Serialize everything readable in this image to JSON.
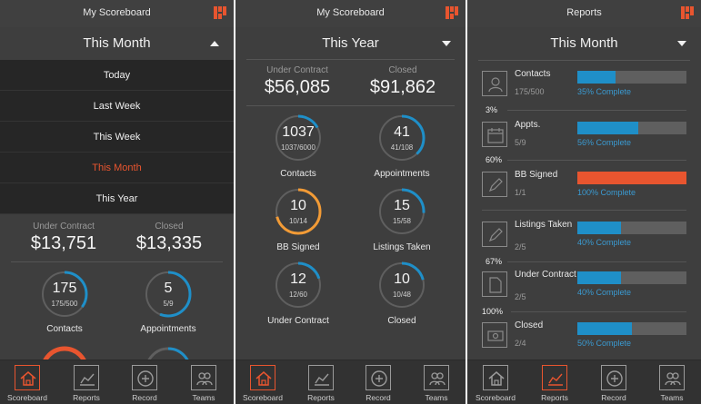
{
  "colors": {
    "accent": "#e8552f",
    "blue": "#1f8fc8",
    "orange": "#f29b36",
    "track": "#5f5f5f"
  },
  "screen1": {
    "title": "My Scoreboard",
    "period": "This Month",
    "dropdown": [
      "Today",
      "Last Week",
      "This Week",
      "This Month",
      "This Year"
    ],
    "under_contract_label": "Under Contract",
    "under_contract_value": "$13,751",
    "closed_label": "Closed",
    "closed_value": "$13,335",
    "rings": [
      {
        "big": "175",
        "small": "175/500",
        "label": "Contacts",
        "progress": 0.35
      },
      {
        "big": "5",
        "small": "5/9",
        "label": "Appointments",
        "progress": 0.56
      }
    ]
  },
  "screen2": {
    "title": "My Scoreboard",
    "period": "This Year",
    "under_contract_label": "Under Contract",
    "under_contract_value": "$56,085",
    "closed_label": "Closed",
    "closed_value": "$91,862",
    "rings": [
      {
        "big": "1037",
        "small": "1037/6000",
        "label": "Contacts",
        "progress": 0.17
      },
      {
        "big": "41",
        "small": "41/108",
        "label": "Appointments",
        "progress": 0.38
      },
      {
        "big": "10",
        "small": "10/14",
        "label": "BB Signed",
        "progress": 0.71
      },
      {
        "big": "15",
        "small": "15/58",
        "label": "Listings Taken",
        "progress": 0.26
      },
      {
        "big": "12",
        "small": "12/60",
        "label": "Under Contract",
        "progress": 0.2
      },
      {
        "big": "10",
        "small": "10/48",
        "label": "Closed",
        "progress": 0.21
      }
    ]
  },
  "screen3": {
    "title": "Reports",
    "period": "This Month",
    "rows": [
      {
        "name": "Contacts",
        "count": "175/500",
        "pct_text": "35% Complete",
        "progress": 0.35
      },
      {
        "name": "Appts.",
        "count": "5/9",
        "pct_text": "56% Complete",
        "progress": 0.56
      },
      {
        "name": "BB Signed",
        "count": "1/1",
        "pct_text": "100% Complete",
        "progress": 1.0
      },
      {
        "name": "Listings Taken",
        "count": "2/5",
        "pct_text": "40% Complete",
        "progress": 0.4
      },
      {
        "name": "Under Contract",
        "count": "2/5",
        "pct_text": "40% Complete",
        "progress": 0.4
      },
      {
        "name": "Closed",
        "count": "2/4",
        "pct_text": "50% Complete",
        "progress": 0.5
      }
    ],
    "conversions": [
      "3%",
      "60%",
      "67%",
      "100%"
    ]
  },
  "tabs": [
    "Scoreboard",
    "Reports",
    "Record",
    "Teams"
  ]
}
